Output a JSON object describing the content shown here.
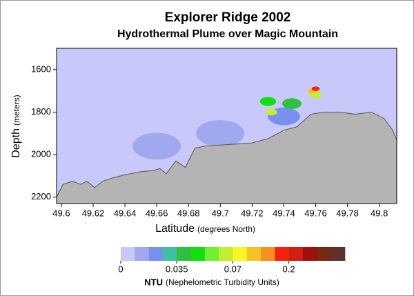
{
  "chart_data": {
    "type": "contour",
    "title": "Explorer Ridge 2002",
    "subtitle": "Hydrothermal Plume over Magic Mountain",
    "x_label": "Latitude",
    "x_label_unit": "(degrees North)",
    "y_label": "Depth",
    "y_label_unit": "(meters)",
    "xlim": [
      49.597,
      49.811
    ],
    "xticks": [
      49.6,
      49.62,
      49.64,
      49.66,
      49.68,
      49.7,
      49.72,
      49.74,
      49.76,
      49.78,
      49.8
    ],
    "ylim": [
      1500,
      2230
    ],
    "yticks": [
      1600,
      1800,
      2000,
      2200
    ],
    "y_inverted": true,
    "background_color": "#c8c8fa",
    "seafloor": {
      "color": "#b4b4b4",
      "x": [
        49.597,
        49.601,
        49.607,
        49.612,
        49.616,
        49.621,
        49.626,
        49.632,
        49.64,
        49.65,
        49.658,
        49.662,
        49.666,
        49.672,
        49.678,
        49.684,
        49.69,
        49.7,
        49.71,
        49.72,
        49.73,
        49.74,
        49.748,
        49.757,
        49.765,
        49.775,
        49.785,
        49.795,
        49.803,
        49.808,
        49.811
      ],
      "values": [
        2200,
        2140,
        2125,
        2140,
        2125,
        2155,
        2125,
        2110,
        2095,
        2080,
        2075,
        2065,
        2090,
        2030,
        2060,
        1970,
        1960,
        1955,
        1950,
        1945,
        1925,
        1885,
        1870,
        1810,
        1800,
        1800,
        1810,
        1800,
        1830,
        1880,
        1930
      ]
    },
    "plume": {
      "x": [
        49.66,
        49.7,
        49.74,
        49.745,
        49.73,
        49.76,
        49.732,
        49.758,
        49.76
      ],
      "y": [
        1960,
        1900,
        1820,
        1760,
        1750,
        1720,
        1800,
        1700,
        1690
      ],
      "values": [
        0.012,
        0.012,
        0.025,
        0.04,
        0.05,
        0.065,
        0.06,
        0.1,
        0.16
      ]
    },
    "colorbar": {
      "title": "NTU",
      "subtitle": "(Nephelometric Turbidity Units)",
      "levels": [
        0,
        0.01,
        0.02,
        0.03,
        0.035,
        0.045,
        0.055,
        0.06,
        0.07,
        0.09,
        0.12,
        0.15,
        0.2,
        0.3,
        0.4,
        0.5
      ],
      "colors": [
        "#c8c8fa",
        "#a0a8f0",
        "#7890f0",
        "#40c0a0",
        "#30c040",
        "#10e010",
        "#70f030",
        "#c0f030",
        "#f8f820",
        "#f8c020",
        "#f89020",
        "#f82010",
        "#d02010",
        "#a01008",
        "#7a2a10",
        "#603030"
      ],
      "ticks": [
        0,
        0.035,
        0.07,
        0.2
      ]
    }
  }
}
